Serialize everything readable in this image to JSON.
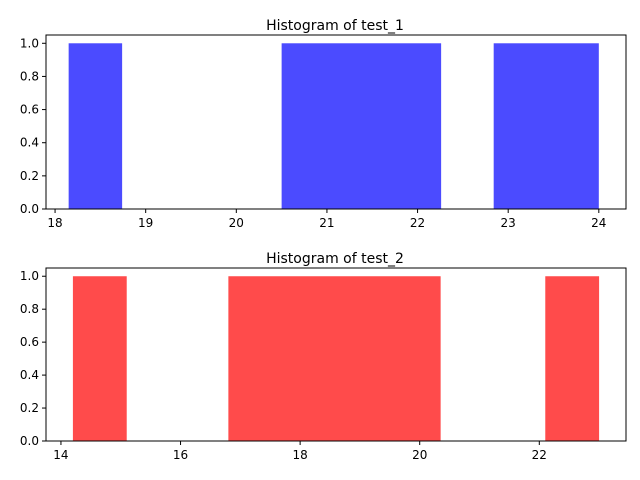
{
  "chart_data": [
    {
      "type": "bar",
      "title": "Histogram of test_1",
      "xlabel": "",
      "ylabel": "",
      "color": "#4b4bff",
      "xlim": [
        17.9,
        24.3
      ],
      "ylim": [
        0,
        1.05
      ],
      "bins": [
        {
          "x0": 18.15,
          "x1": 18.74,
          "value": 1.0
        },
        {
          "x0": 20.5,
          "x1": 22.26,
          "value": 1.0
        },
        {
          "x0": 22.84,
          "x1": 24.0,
          "value": 1.0
        }
      ],
      "xticks": [
        18,
        19,
        20,
        21,
        22,
        23,
        24
      ],
      "yticks": [
        0.0,
        0.2,
        0.4,
        0.6,
        0.8,
        1.0
      ],
      "xtick_labels": [
        "18",
        "19",
        "20",
        "21",
        "22",
        "23",
        "24"
      ],
      "ytick_labels": [
        "0.0",
        "0.2",
        "0.4",
        "0.6",
        "0.8",
        "1.0"
      ],
      "grid": false
    },
    {
      "type": "bar",
      "title": "Histogram of test_2",
      "xlabel": "",
      "ylabel": "",
      "color": "#ff4b4b",
      "xlim": [
        13.75,
        23.45
      ],
      "ylim": [
        0,
        1.05
      ],
      "bins": [
        {
          "x0": 14.2,
          "x1": 15.1,
          "value": 1.0
        },
        {
          "x0": 16.8,
          "x1": 20.35,
          "value": 1.0
        },
        {
          "x0": 22.1,
          "x1": 23.0,
          "value": 1.0
        }
      ],
      "xticks": [
        14,
        16,
        18,
        20,
        22
      ],
      "yticks": [
        0.0,
        0.2,
        0.4,
        0.6,
        0.8,
        1.0
      ],
      "xtick_labels": [
        "14",
        "16",
        "18",
        "20",
        "22"
      ],
      "ytick_labels": [
        "0.0",
        "0.2",
        "0.4",
        "0.6",
        "0.8",
        "1.0"
      ],
      "grid": false
    }
  ]
}
